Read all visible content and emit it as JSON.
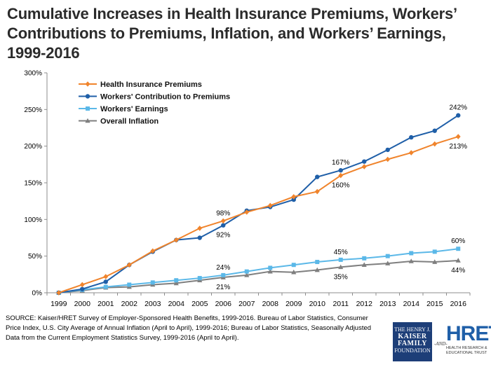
{
  "title": "Cumulative Increases in Health Insurance Premiums, Workers’ Contributions to Premiums, Inflation, and Workers’ Earnings, 1999-2016",
  "source": "SOURCE:  Kaiser/HRET Survey of Employer-Sponsored Health Benefits, 1999-2016.  Bureau of Labor Statistics, Consumer Price Index, U.S. City Average of Annual Inflation (April to April), 1999-2016; Bureau of Labor Statistics, Seasonally Adjusted Data from the Current Employment Statistics Survey, 1999-2016 (April to April).",
  "logos": {
    "kff_top": "THE HENRY J.",
    "kff_mid1": "KAISER",
    "kff_mid2": "FAMILY",
    "kff_bottom": "FOUNDATION",
    "and": "-AND-",
    "hret": "HRET",
    "hret_sub1": "HEALTH RESEARCH &",
    "hret_sub2": "EDUCATIONAL TRUST"
  },
  "chart_data": {
    "type": "line",
    "title": "Cumulative Increases in Health Insurance Premiums, Workers’ Contributions to Premiums, Inflation, and Workers’ Earnings, 1999-2016",
    "xlabel": "",
    "ylabel": "",
    "ylim": [
      0,
      300
    ],
    "y_ticks": [
      "0%",
      "50%",
      "100%",
      "150%",
      "200%",
      "250%",
      "300%"
    ],
    "y_tick_values": [
      0,
      50,
      100,
      150,
      200,
      250,
      300
    ],
    "x": [
      "1999",
      "2000",
      "2001",
      "2002",
      "2003",
      "2004",
      "2005",
      "2006",
      "2007",
      "2008",
      "2009",
      "2010",
      "2011",
      "2012",
      "2013",
      "2014",
      "2015",
      "2016"
    ],
    "grid": false,
    "legend_position": "top-left",
    "series": [
      {
        "name": "Health Insurance Premiums",
        "color": "#f0842c",
        "marker": "diamond",
        "values": [
          0,
          11,
          22,
          38,
          57,
          72,
          88,
          98,
          110,
          119,
          131,
          138,
          160,
          172,
          182,
          191,
          203,
          213
        ]
      },
      {
        "name": "Workers' Contribution to Premiums",
        "color": "#1f5fa8",
        "marker": "circle",
        "values": [
          0,
          5,
          15,
          38,
          56,
          72,
          75,
          92,
          112,
          117,
          127,
          158,
          167,
          179,
          195,
          212,
          221,
          242
        ]
      },
      {
        "name": "Workers' Earnings",
        "color": "#5bb8e8",
        "marker": "square",
        "values": [
          0,
          4,
          8,
          11,
          14,
          17,
          20,
          24,
          29,
          34,
          38,
          42,
          45,
          47,
          50,
          54,
          56,
          60
        ]
      },
      {
        "name": "Overall Inflation",
        "color": "#7f7f7f",
        "marker": "triangle",
        "values": [
          0,
          3,
          7,
          8,
          11,
          13,
          17,
          21,
          24,
          29,
          28,
          31,
          35,
          38,
          40,
          43,
          42,
          44
        ]
      }
    ],
    "annotations": [
      {
        "series": 0,
        "x": "2006",
        "text": "98%",
        "place": "above"
      },
      {
        "series": 1,
        "x": "2006",
        "text": "92%",
        "place": "below"
      },
      {
        "series": 1,
        "x": "2011",
        "text": "167%",
        "place": "above"
      },
      {
        "series": 0,
        "x": "2011",
        "text": "160%",
        "place": "below"
      },
      {
        "series": 1,
        "x": "2016",
        "text": "242%",
        "place": "above"
      },
      {
        "series": 0,
        "x": "2016",
        "text": "213%",
        "place": "below"
      },
      {
        "series": 2,
        "x": "2006",
        "text": "24%",
        "place": "above"
      },
      {
        "series": 3,
        "x": "2006",
        "text": "21%",
        "place": "below"
      },
      {
        "series": 2,
        "x": "2011",
        "text": "45%",
        "place": "above"
      },
      {
        "series": 3,
        "x": "2011",
        "text": "35%",
        "place": "below"
      },
      {
        "series": 2,
        "x": "2016",
        "text": "60%",
        "place": "above"
      },
      {
        "series": 3,
        "x": "2016",
        "text": "44%",
        "place": "below"
      }
    ]
  }
}
